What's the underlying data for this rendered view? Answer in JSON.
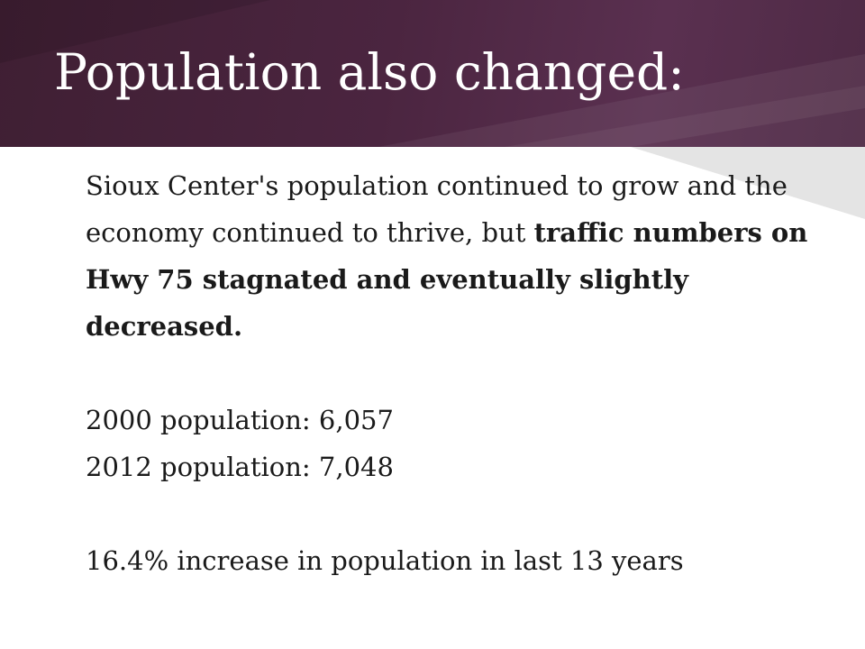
{
  "slide": {
    "title": "Population also changed:",
    "intro": {
      "plain": "Sioux Center's population continued to grow and the economy continued to thrive, but ",
      "bold": "traffic numbers on Hwy 75 stagnated and eventually slightly decreased."
    },
    "population_2000": "2000 population: 6,057",
    "population_2012": "2012 population: 7,048",
    "increase": "16.4% increase in population in last 13 years"
  },
  "colors": {
    "title_band": "#4b2540",
    "title_text": "#ffffff",
    "body_text": "#1a1a1a",
    "background": "#ffffff"
  }
}
